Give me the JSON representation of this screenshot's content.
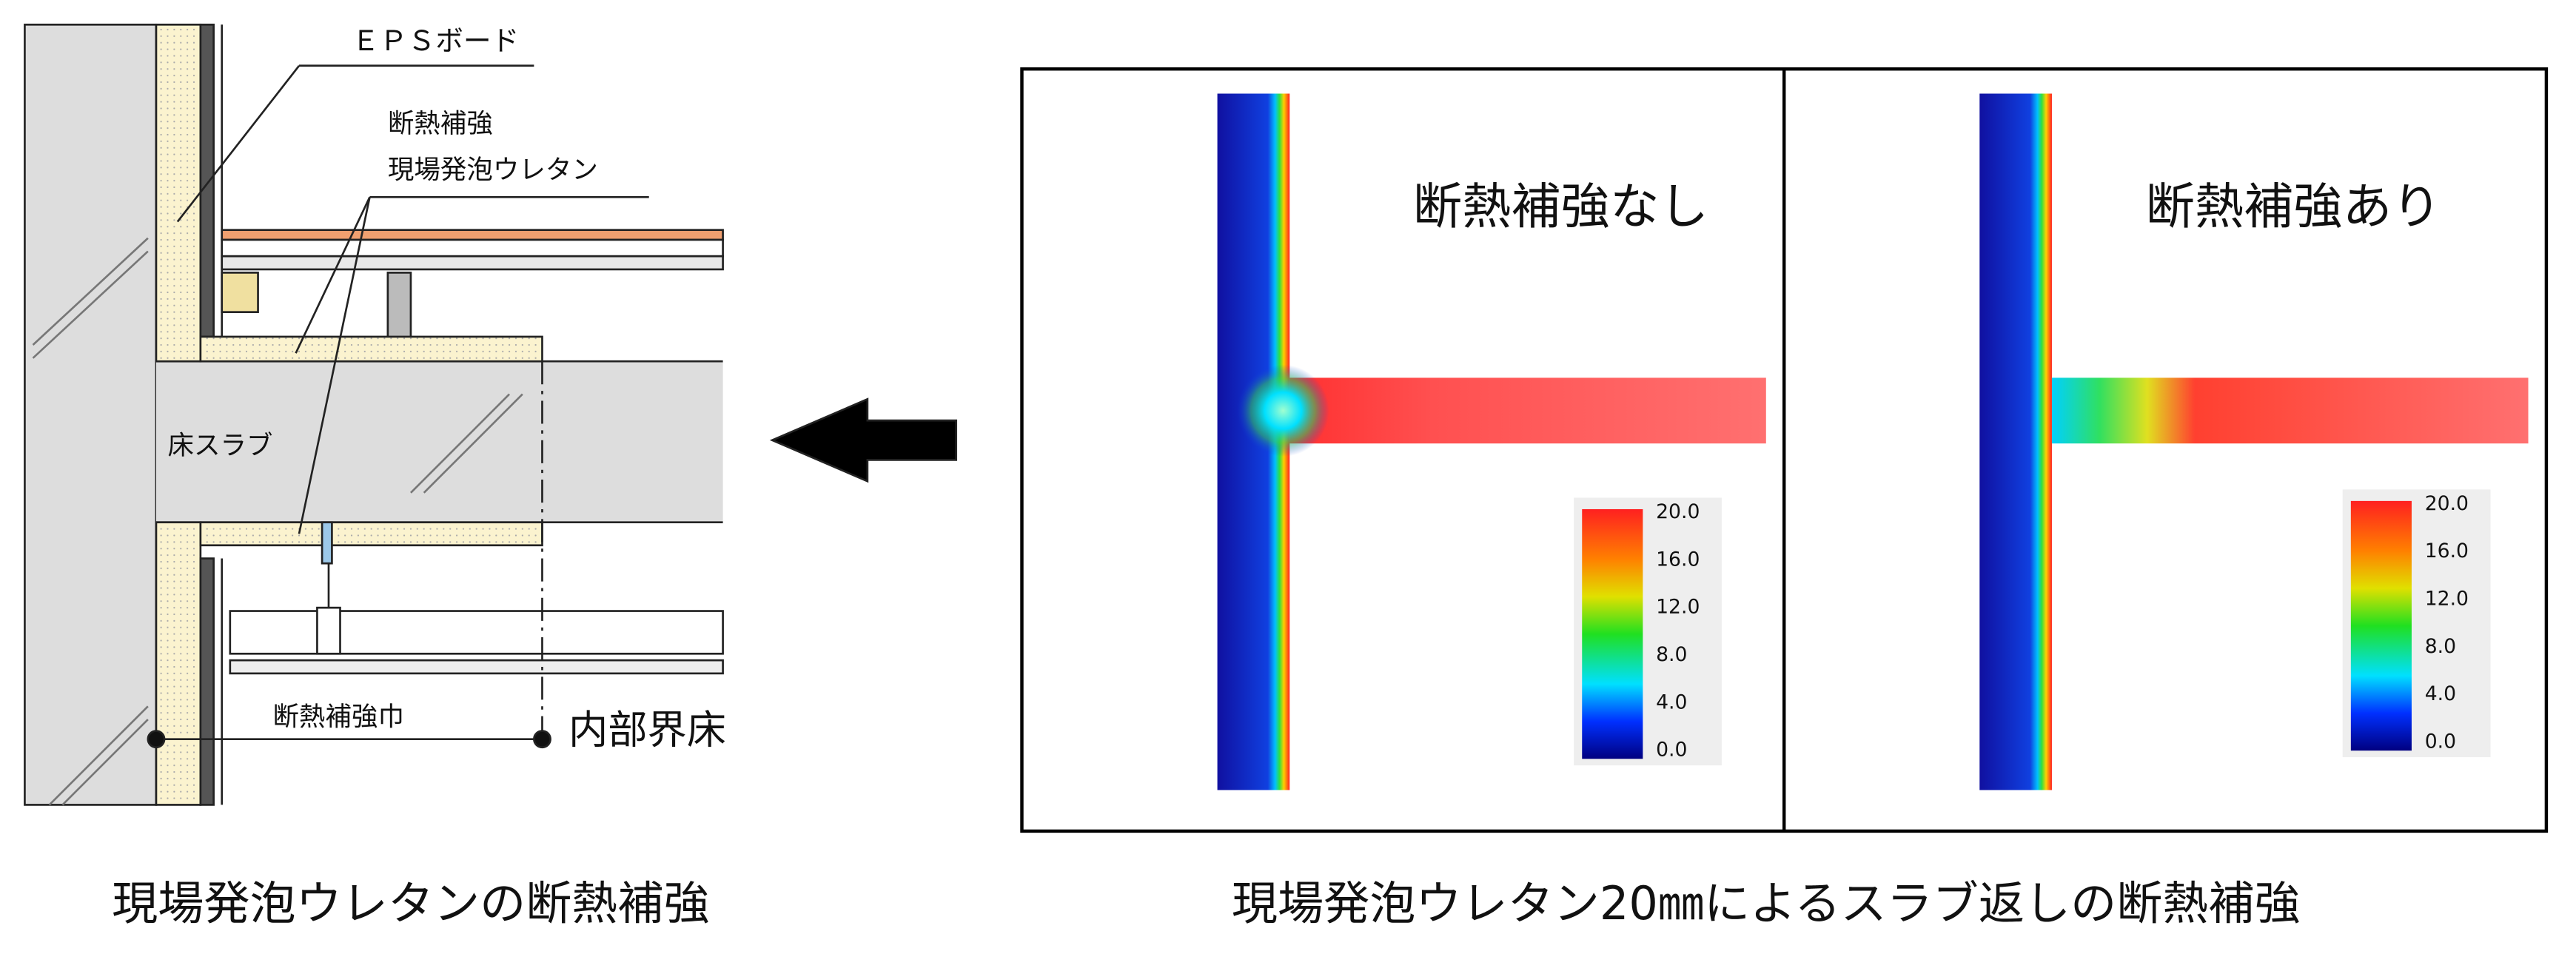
{
  "left_diagram": {
    "labels": {
      "eps_board": "ＥＰＳボード",
      "insulation_top": "断熱補強",
      "insulation_bottom": "現場発泡ウレタン",
      "slab": "床スラブ",
      "width": "断熱補強巾",
      "floor": "内部界床"
    },
    "caption": "現場発泡ウレタンの断熱補強"
  },
  "simulations": [
    {
      "title": "断熱補強なし",
      "scale_ticks": [
        "20.0",
        "16.0",
        "12.0",
        "8.0",
        "4.0",
        "0.0"
      ]
    },
    {
      "title": "断熱補強あり",
      "scale_ticks": [
        "20.0",
        "16.0",
        "12.0",
        "8.0",
        "4.0",
        "0.0"
      ]
    }
  ],
  "caption": "現場発泡ウレタン20㎜によるスラブ返しの断熱補強"
}
